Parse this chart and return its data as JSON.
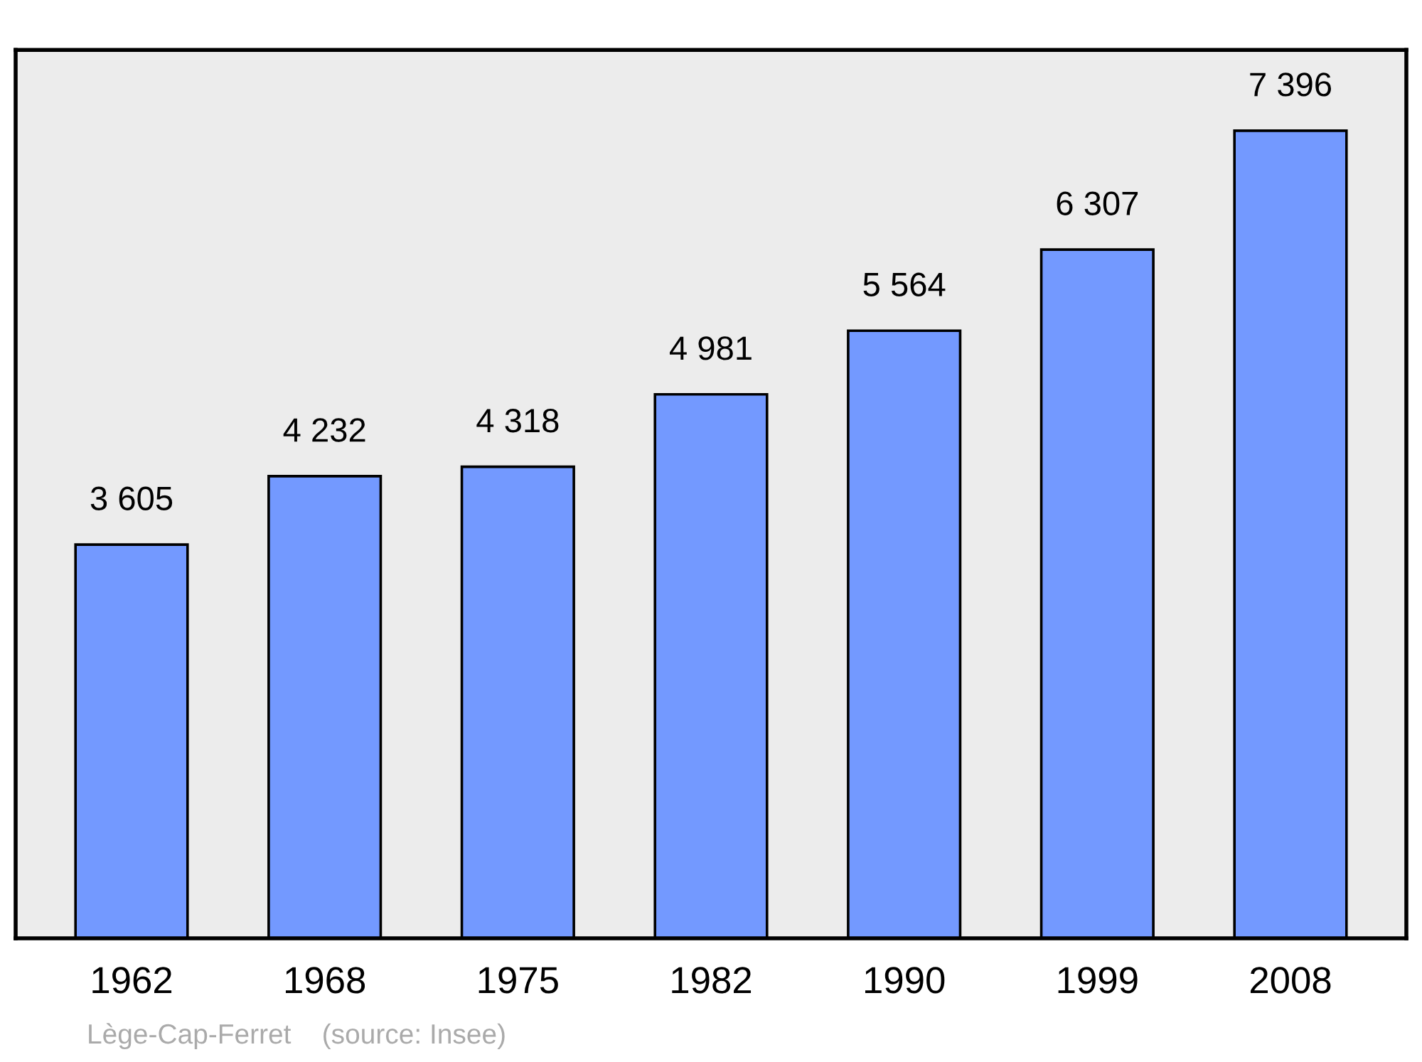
{
  "chart_data": {
    "type": "bar",
    "categories": [
      "1962",
      "1968",
      "1975",
      "1982",
      "1990",
      "1999",
      "2008"
    ],
    "values": [
      3605,
      4232,
      4318,
      4981,
      5564,
      6307,
      7396
    ],
    "value_labels": [
      "3 605",
      "4 232",
      "4 318",
      "4 981",
      "5 564",
      "6 307",
      "7 396"
    ],
    "color": "#7399ff",
    "grid": false,
    "legend": false,
    "tick_labels": "x",
    "annotations": [
      "Lège-Cap-Ferret    (source: Insee)"
    ]
  }
}
